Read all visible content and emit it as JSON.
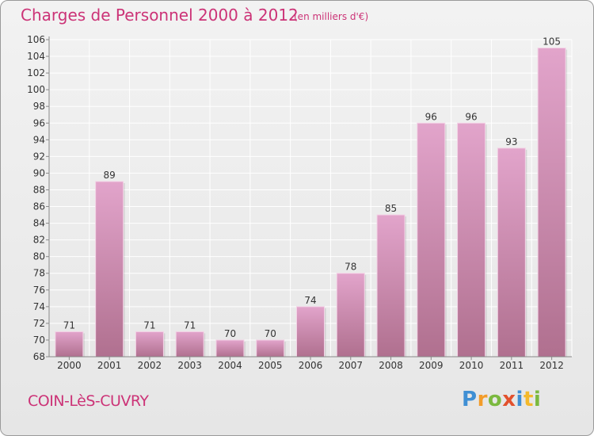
{
  "header": {
    "title": "Charges de Personnel 2000 à 2012",
    "subtitle": "(en milliers d'€)"
  },
  "footer": {
    "commune": "COIN-LèS-CUVRY",
    "logo": {
      "letters": [
        "P",
        "r",
        "o",
        "x",
        "i",
        "t",
        "i"
      ]
    }
  },
  "colors": {
    "accent": "#cc3377",
    "bar_top": "#e2a4cb",
    "bar_bottom": "#b0708f",
    "grid": "#ffffff",
    "axis": "#888888"
  },
  "chart_data": {
    "type": "bar",
    "title": "Charges de Personnel 2000 à 2012",
    "subtitle": "(en milliers d'€)",
    "categories": [
      "2000",
      "2001",
      "2002",
      "2003",
      "2004",
      "2005",
      "2006",
      "2007",
      "2008",
      "2009",
      "2010",
      "2011",
      "2012"
    ],
    "values": [
      71,
      89,
      71,
      71,
      70,
      70,
      74,
      78,
      85,
      96,
      96,
      93,
      105
    ],
    "data_labels": [
      "71",
      "89",
      "71",
      "71",
      "70",
      "70",
      "74",
      "78",
      "85",
      "96",
      "96",
      "93",
      "105"
    ],
    "ylim": [
      68,
      106
    ],
    "ytick_step": 2,
    "grid": true,
    "xlabel": "",
    "ylabel": ""
  }
}
